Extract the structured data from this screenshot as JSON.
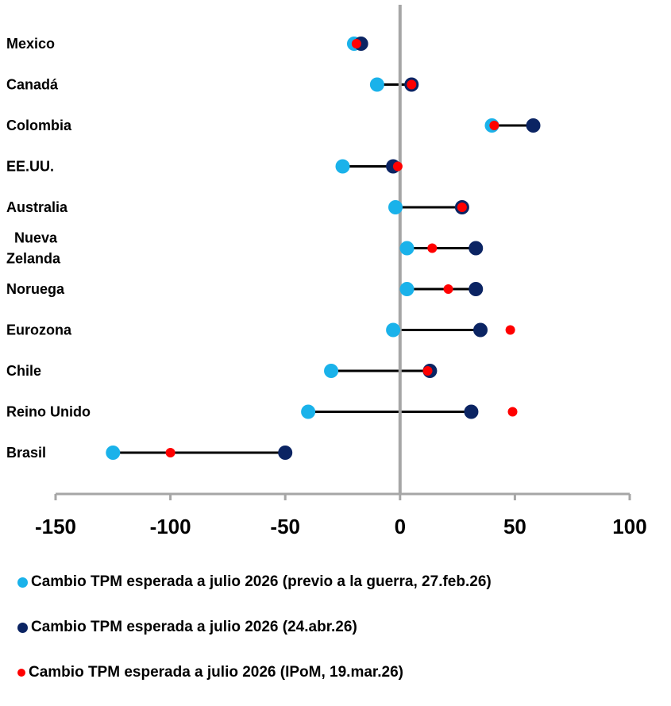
{
  "chart_data": {
    "type": "scatter",
    "categories": [
      "Mexico",
      "Canadá",
      "Colombia",
      "EE.UU.",
      "Australia",
      "Nueva\nZelanda",
      "Noruega",
      "Eurozona",
      "Chile",
      "Reino Unido",
      "Brasil"
    ],
    "series": [
      {
        "name": "Cambio TPM esperada a julio 2026 (previo a la guerra, 27.feb.26)",
        "color": "#1ab2ea",
        "values": [
          -20,
          -10,
          40,
          -25,
          -2,
          3,
          3,
          -3,
          -30,
          -40,
          -125
        ]
      },
      {
        "name": "Cambio TPM esperada a julio 2026 (24.abr.26)",
        "color": "#0b2463",
        "values": [
          -17,
          5,
          58,
          -3,
          27,
          33,
          33,
          35,
          13,
          31,
          -50
        ]
      },
      {
        "name": "Cambio TPM esperada a julio 2026 (IPoM, 19.mar.26)",
        "color": "#ff0000",
        "values": [
          -19,
          5,
          41,
          -1,
          27,
          14,
          21,
          48,
          12,
          49,
          -100
        ]
      }
    ],
    "range_line": {
      "color": "#000000"
    },
    "xlim": [
      -150,
      100
    ],
    "x_ticks": [
      -150,
      -100,
      -50,
      0,
      50,
      100
    ],
    "grid": false,
    "legend_position": "bottom"
  }
}
